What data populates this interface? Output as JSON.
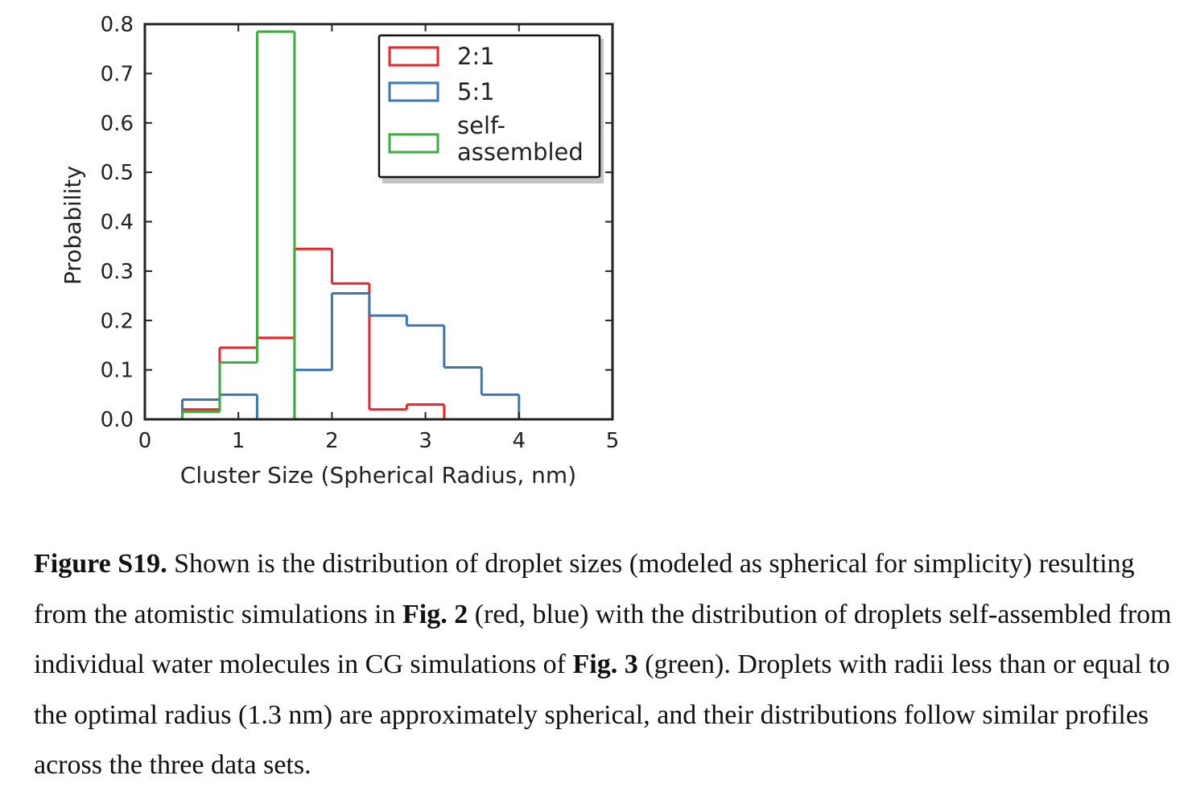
{
  "chart_data": {
    "type": "histogram",
    "xlabel": "Cluster Size (Spherical Radius, nm)",
    "ylabel": "Probability",
    "xlim": [
      0,
      5
    ],
    "ylim": [
      0,
      0.8
    ],
    "xticks": [
      0,
      1,
      2,
      3,
      4,
      5
    ],
    "xtick_labels": [
      "0",
      "1",
      "2",
      "3",
      "4",
      "5"
    ],
    "yticks": [
      0.0,
      0.1,
      0.2,
      0.3,
      0.4,
      0.5,
      0.6,
      0.7,
      0.8
    ],
    "ytick_labels": [
      "0.0",
      "0.1",
      "0.2",
      "0.3",
      "0.4",
      "0.5",
      "0.6",
      "0.7",
      "0.8"
    ],
    "grid": false,
    "legend_position": "top-right",
    "series": [
      {
        "name": "2:1",
        "color": "#e8262b",
        "bin_edges": [
          0.4,
          0.8,
          1.2,
          1.6,
          2.0,
          2.4,
          2.8,
          3.2
        ],
        "values": [
          0.02,
          0.145,
          0.165,
          0.345,
          0.275,
          0.02,
          0.03
        ]
      },
      {
        "name": "5:1",
        "color": "#3a77b5",
        "bin_edges": [
          0.4,
          0.8,
          1.2,
          1.6,
          2.0,
          2.4,
          2.8,
          3.2,
          3.6,
          4.0
        ],
        "values": [
          0.04,
          0.05,
          0.0,
          0.1,
          0.255,
          0.21,
          0.19,
          0.105,
          0.05
        ]
      },
      {
        "name": "self-assembled",
        "legend_lines": [
          "self-",
          "assembled"
        ],
        "color": "#3cab3d",
        "bin_edges": [
          0.4,
          0.8,
          1.2,
          1.6
        ],
        "values": [
          0.015,
          0.115,
          0.785
        ]
      }
    ]
  },
  "caption": {
    "label": "Figure S19.",
    "text_1": " Shown is the distribution of droplet sizes (modeled as spherical for simplicity) resulting from the atomistic simulations in ",
    "ref_1": "Fig. 2",
    "text_2": " (red, blue) with the distribution of droplets self-assembled from individual water molecules in CG simulations of ",
    "ref_2": "Fig. 3",
    "text_3": " (green). Droplets with radii less than or equal to the optimal radius (1.3 nm) are approximately spherical, and their distributions follow similar profiles across the three data sets."
  }
}
